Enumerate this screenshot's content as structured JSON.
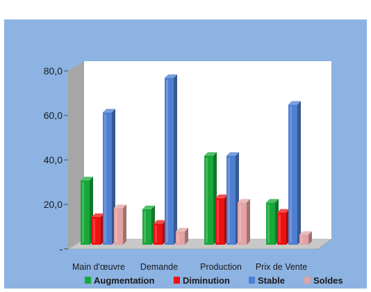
{
  "chart_data": {
    "type": "bar",
    "categories": [
      "Main d'œuvre",
      "Demande",
      "Production",
      "Prix de Vente"
    ],
    "series": [
      {
        "name": "Augmentation",
        "color": "#18a83a",
        "values": [
          29,
          16,
          40,
          19
        ]
      },
      {
        "name": "Diminution",
        "color": "#ee1111",
        "values": [
          12.5,
          9.5,
          21,
          14.5
        ]
      },
      {
        "name": "Stable",
        "color": "#4e7fd0",
        "values": [
          59.5,
          75,
          40,
          63
        ]
      },
      {
        "name": "Soldes",
        "color": "#e3a3a3",
        "values": [
          16.5,
          6,
          19,
          4.5
        ]
      }
    ],
    "y_ticks": [
      "-",
      "20,0",
      "40,0",
      "60,0",
      "80,0"
    ],
    "ylim": [
      0,
      80
    ],
    "grid": false,
    "legend_position": "bottom",
    "background_color": "#8db3e2",
    "title": "",
    "xlabel": "",
    "ylabel": ""
  }
}
